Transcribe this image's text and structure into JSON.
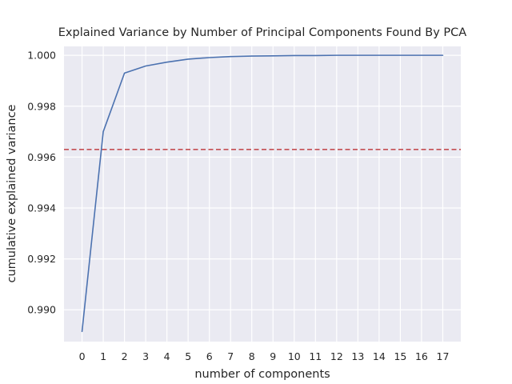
{
  "chart_data": {
    "type": "line",
    "title": "Explained Variance by Number of Principal Components Found By PCA",
    "xlabel": "number of components",
    "ylabel": "cumulative explained variance",
    "x": [
      0,
      1,
      2,
      3,
      4,
      5,
      6,
      7,
      8,
      9,
      10,
      11,
      12,
      13,
      14,
      15,
      16,
      17
    ],
    "x_tick_labels": [
      "0",
      "1",
      "2",
      "3",
      "4",
      "5",
      "6",
      "7",
      "8",
      "9",
      "10",
      "11",
      "12",
      "13",
      "14",
      "15",
      "16",
      "17"
    ],
    "series": [
      {
        "color": "#4c72b0",
        "values": [
          0.98915,
          0.997,
          0.9993,
          0.99958,
          0.99973,
          0.99985,
          0.99991,
          0.99995,
          0.99997,
          0.99998,
          0.99999,
          0.99999,
          1.0,
          1.0,
          1.0,
          1.0,
          1.0,
          1.0
        ]
      }
    ],
    "reference_line": {
      "y": 0.9963,
      "color": "#c44e52",
      "style": "dashed"
    },
    "y_ticks": [
      0.99,
      0.992,
      0.994,
      0.996,
      0.998,
      1.0
    ],
    "y_tick_labels": [
      "0.990",
      "0.992",
      "0.994",
      "0.996",
      "0.998",
      "1.000"
    ],
    "xlim": [
      -0.85,
      17.85
    ],
    "ylim": [
      0.98875,
      1.00035
    ],
    "grid": true,
    "background": "#eaeaf2",
    "grid_color": "#ffffff"
  }
}
